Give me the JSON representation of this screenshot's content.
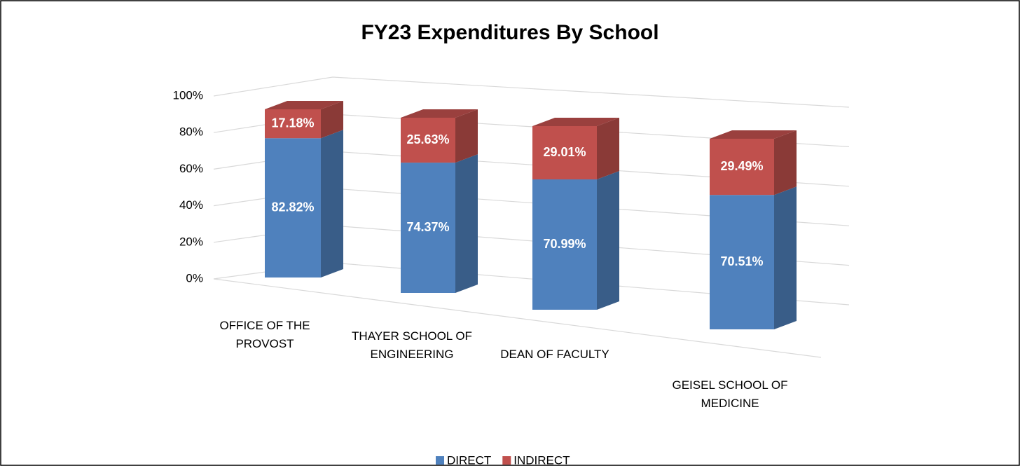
{
  "chart_data": {
    "type": "bar3d_stacked",
    "title": "FY23 Expenditures By School",
    "categories": [
      "OFFICE OF THE PROVOST",
      "THAYER SCHOOL OF ENGINEERING",
      "DEAN OF FACULTY",
      "GEISEL SCHOOL OF MEDICINE"
    ],
    "series": [
      {
        "name": "DIRECT",
        "color": "#4f81bd",
        "values": [
          82.82,
          74.37,
          70.99,
          70.51
        ],
        "value_labels": [
          "82.82%",
          "74.37%",
          "70.99%",
          "70.51%"
        ]
      },
      {
        "name": "INDIRECT",
        "color": "#c0504d",
        "values": [
          17.18,
          25.63,
          29.01,
          29.49
        ],
        "value_labels": [
          "17.18%",
          "25.63%",
          "29.01%",
          "29.49%"
        ]
      }
    ],
    "ylim": [
      0,
      100
    ],
    "yticks": [
      {
        "value": 0,
        "label": "0%"
      },
      {
        "value": 20,
        "label": "20%"
      },
      {
        "value": 40,
        "label": "40%"
      },
      {
        "value": 60,
        "label": "60%"
      },
      {
        "value": 80,
        "label": "80%"
      },
      {
        "value": 100,
        "label": "100%"
      }
    ],
    "grid": true,
    "legend": "bottom"
  }
}
